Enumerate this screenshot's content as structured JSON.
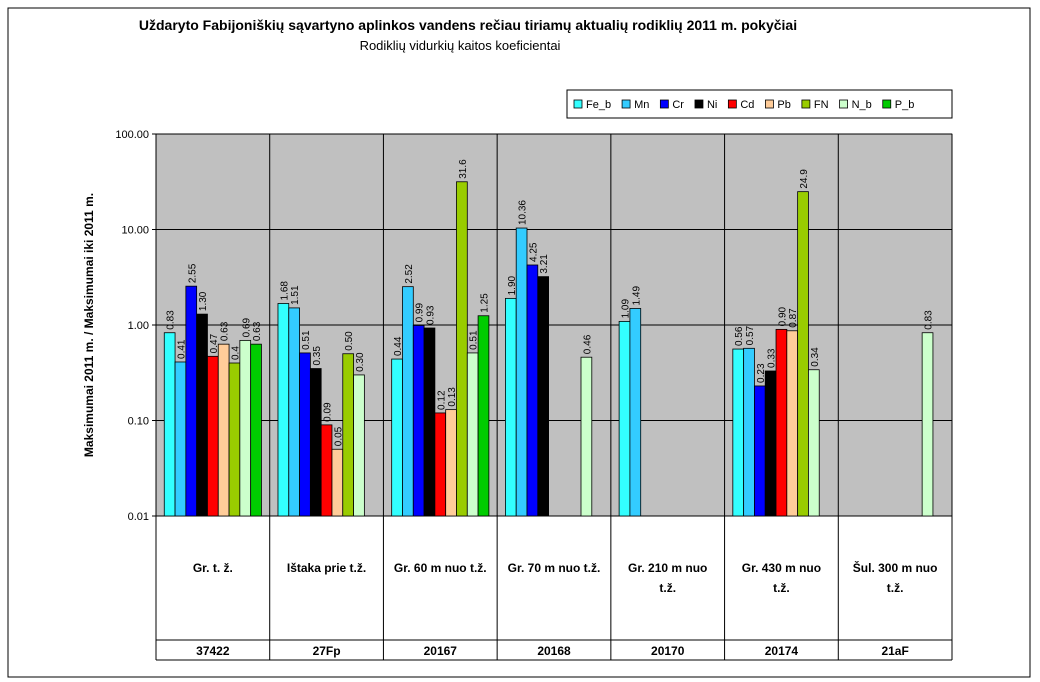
{
  "chart_data": {
    "type": "bar",
    "title": "Uždaryto Fabijoniškių sąvartyno aplinkos vandens rečiau tiriamų aktualių rodiklių 2011 m. pokyčiai",
    "subtitle": "Rodiklių vidurkių kaitos koeficientai",
    "ylabel": "Maksimumai 2011 m. / Maksimumai iki 2011 m.",
    "categories": [
      "Gr. t. ž.",
      "Ištaka prie t.ž.",
      "Gr. 60 m nuo t.ž.",
      "Gr. 70 m nuo t.ž.",
      "Gr. 210 m nuo t.ž.",
      "Gr. 430 m nuo t.ž.",
      "Šul. 300 m nuo t.ž."
    ],
    "category_codes": [
      "37422",
      "27Fp",
      "20167",
      "20168",
      "20170",
      "20174",
      "21aF"
    ],
    "log_scale": true,
    "grid": true,
    "legend": "top-right",
    "ylim": [
      0.01,
      100
    ],
    "yticks": [
      {
        "value": 0.01,
        "label": "0.01"
      },
      {
        "value": 0.1,
        "label": "0.10"
      },
      {
        "value": 1,
        "label": "1.00"
      },
      {
        "value": 10,
        "label": "10.00"
      },
      {
        "value": 100,
        "label": "100.00"
      }
    ],
    "series": [
      {
        "name": "Fe_b",
        "color": "#33ffff",
        "values": [
          0.83,
          1.68,
          0.44,
          1.9,
          1.09,
          0.56,
          null
        ],
        "value_labels": [
          "0.83",
          "1.68",
          "0.44",
          "1.90",
          "1.09",
          "0.56",
          null
        ]
      },
      {
        "name": "Mn",
        "color": "#33ccff",
        "values": [
          0.41,
          1.51,
          2.52,
          10.36,
          1.49,
          0.57,
          null
        ],
        "value_labels": [
          "0.41",
          "1.51",
          "2.52",
          "10.36",
          "1.49",
          "0.57",
          null
        ]
      },
      {
        "name": "Cr",
        "color": "#0000ff",
        "values": [
          2.55,
          0.51,
          0.99,
          4.25,
          null,
          0.23,
          null
        ],
        "value_labels": [
          "2.55",
          "0.51",
          "0.99",
          "4.25",
          null,
          "0.23",
          null
        ]
      },
      {
        "name": "Ni",
        "color": "#000000",
        "values": [
          1.3,
          0.35,
          0.93,
          3.21,
          null,
          0.33,
          null
        ],
        "value_labels": [
          "1.30",
          "0.35",
          "0.93",
          "3.21",
          null,
          "0.33",
          null
        ]
      },
      {
        "name": "Cd",
        "color": "#ff0000",
        "values": [
          0.47,
          0.09,
          0.12,
          null,
          null,
          0.9,
          null
        ],
        "value_labels": [
          "0.47",
          "0.09",
          "0.12",
          null,
          null,
          "0.90",
          null
        ]
      },
      {
        "name": "Pb",
        "color": "#ffcc99",
        "values": [
          0.63,
          0.05,
          0.13,
          null,
          null,
          0.87,
          null
        ],
        "value_labels": [
          "0.63",
          "0.05",
          "0.13",
          null,
          null,
          "0.87",
          null
        ]
      },
      {
        "name": "FN",
        "color": "#99cc00",
        "values": [
          0.4,
          0.5,
          31.6,
          null,
          null,
          24.9,
          null
        ],
        "value_labels": [
          "0.4",
          "0.50",
          "31.6",
          null,
          null,
          "24.9",
          null
        ]
      },
      {
        "name": "N_b",
        "color": "#ccffcc",
        "values": [
          0.69,
          0.3,
          0.51,
          0.46,
          null,
          0.34,
          0.83
        ],
        "value_labels": [
          "0.69",
          "0.30",
          "0.51",
          "0.46",
          null,
          "0.34",
          "0.83"
        ]
      },
      {
        "name": "P_b",
        "color": "#00cc00",
        "values": [
          0.63,
          null,
          1.25,
          null,
          null,
          null,
          null
        ],
        "value_labels": [
          "0.63",
          null,
          "1.25",
          null,
          null,
          null,
          null
        ]
      }
    ]
  }
}
